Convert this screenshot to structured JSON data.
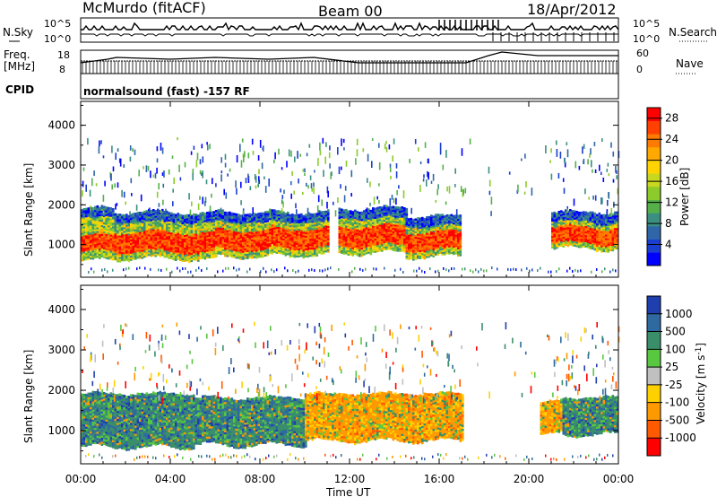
{
  "header": {
    "site": "McMurdo (fitACF)",
    "beam": "Beam 00",
    "date": "18/Apr/2012"
  },
  "status_panel": {
    "nsky_label": "N.Sky",
    "nsearch_label": "N.Search",
    "noise_ticks_left": [
      "10^5",
      "10^0"
    ],
    "noise_ticks_right": [
      "10^5",
      "10^0"
    ],
    "freq_label_1": "Freq.",
    "freq_label_2": "[MHz]",
    "freq_ticks": [
      "18",
      "8"
    ],
    "nave_label": "Nave",
    "nave_ticks": [
      "60",
      "0"
    ],
    "cpid_label": "CPID",
    "cpid_text": "normalsound (fast) -157 RF"
  },
  "chart_data": [
    {
      "type": "heatmap",
      "title": "",
      "xlabel": "",
      "ylabel": "Slant Range [km]",
      "x_ticks": [
        "00:00",
        "04:00",
        "08:00",
        "12:00",
        "16:00",
        "20:00",
        "00:00"
      ],
      "y_ticks": [
        "1000",
        "2000",
        "3000",
        "4000"
      ],
      "xlim_hours": [
        0,
        24
      ],
      "ylim": [
        180,
        4600
      ],
      "colorbar": {
        "label": "Power [dB]",
        "ticks": [
          "4",
          "8",
          "12",
          "16",
          "20",
          "24",
          "28"
        ],
        "range": [
          0,
          30
        ],
        "colors": [
          "#0000ff",
          "#1a3fd0",
          "#2e66a8",
          "#3a8f80",
          "#55b04a",
          "#8ccb2a",
          "#c8d820",
          "#ffd400",
          "#ffa800",
          "#ff7a00",
          "#ff4000",
          "#ff0000"
        ]
      },
      "bands": [
        {
          "t": [
            0.0,
            1.5
          ],
          "r": [
            600,
            1900
          ],
          "core": [
            800,
            1200
          ]
        },
        {
          "t": [
            1.5,
            6.0
          ],
          "r": [
            650,
            1800
          ],
          "core": [
            800,
            1300
          ]
        },
        {
          "t": [
            6.0,
            8.5
          ],
          "r": [
            700,
            1800
          ],
          "core": [
            850,
            1350
          ]
        },
        {
          "t": [
            8.5,
            11.0
          ],
          "r": [
            750,
            1800
          ],
          "core": [
            900,
            1400
          ]
        },
        {
          "t": [
            11.5,
            14.5
          ],
          "r": [
            800,
            1900
          ],
          "core": [
            950,
            1450
          ]
        },
        {
          "t": [
            14.5,
            17.0
          ],
          "r": [
            700,
            1700
          ],
          "core": [
            850,
            1300
          ]
        },
        {
          "t": [
            21.0,
            24.0
          ],
          "r": [
            900,
            1800
          ],
          "core": [
            1000,
            1400
          ]
        }
      ]
    },
    {
      "type": "heatmap",
      "title": "",
      "xlabel": "Time UT",
      "ylabel": "Slant Range [km]",
      "x_ticks": [
        "00:00",
        "04:00",
        "08:00",
        "12:00",
        "16:00",
        "20:00",
        "00:00"
      ],
      "y_ticks": [
        "1000",
        "2000",
        "3000",
        "4000"
      ],
      "xlim_hours": [
        0,
        24
      ],
      "ylim": [
        180,
        4600
      ],
      "colorbar": {
        "label": "Velocity [m s^-1]",
        "ticks": [
          "1000",
          "500",
          "100",
          "25",
          "-25",
          "-100",
          "-500",
          "-1000"
        ],
        "colors": [
          "#1f3fae",
          "#2e6aa0",
          "#3b8e6a",
          "#58c840",
          "#c0c0c0",
          "#ffd000",
          "#ff9900",
          "#ff5a00",
          "#ff0000"
        ]
      },
      "bands": [
        {
          "t": [
            0.0,
            5.0
          ],
          "r": [
            600,
            1900
          ],
          "dominant": "green"
        },
        {
          "t": [
            5.0,
            10.0
          ],
          "r": [
            650,
            1800
          ],
          "dominant": "green"
        },
        {
          "t": [
            10.0,
            17.0
          ],
          "r": [
            750,
            1900
          ],
          "dominant": "orange"
        },
        {
          "t": [
            20.5,
            21.5
          ],
          "r": [
            900,
            1700
          ],
          "dominant": "orange"
        },
        {
          "t": [
            21.5,
            24.0
          ],
          "r": [
            900,
            1800
          ],
          "dominant": "green"
        }
      ]
    }
  ]
}
